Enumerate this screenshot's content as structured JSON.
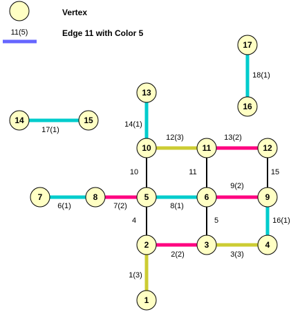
{
  "legend": {
    "vertex_label": "Vertex",
    "edge_sample_label": "11(5)",
    "edge_description": "Edge 11 with Color 5"
  },
  "colors": {
    "1": "#cccc33",
    "2": "#ff0080",
    "3": "#cccc33",
    "5": "#6666ff",
    "black": "#000000",
    "cyan": "#00cccc"
  },
  "vertices": [
    {
      "id": "1",
      "label": "1"
    },
    {
      "id": "2",
      "label": "2"
    },
    {
      "id": "3",
      "label": "3"
    },
    {
      "id": "4",
      "label": "4"
    },
    {
      "id": "5",
      "label": "5"
    },
    {
      "id": "6",
      "label": "6"
    },
    {
      "id": "7",
      "label": "7"
    },
    {
      "id": "8",
      "label": "8"
    },
    {
      "id": "9",
      "label": "9"
    },
    {
      "id": "10",
      "label": "10"
    },
    {
      "id": "11",
      "label": "11"
    },
    {
      "id": "12",
      "label": "12"
    },
    {
      "id": "13",
      "label": "13"
    },
    {
      "id": "14",
      "label": "14"
    },
    {
      "id": "15",
      "label": "15"
    },
    {
      "id": "16",
      "label": "16"
    },
    {
      "id": "17",
      "label": "17"
    }
  ],
  "edges": [
    {
      "from": "2",
      "to": "1",
      "label": "1(3)",
      "color": "#cccc33"
    },
    {
      "from": "2",
      "to": "3",
      "label": "2(2)",
      "color": "#ff0080"
    },
    {
      "from": "3",
      "to": "4",
      "label": "3(3)",
      "color": "#cccc33"
    },
    {
      "from": "5",
      "to": "2",
      "label": "4",
      "color": "#000000"
    },
    {
      "from": "6",
      "to": "3",
      "label": "5",
      "color": "#000000"
    },
    {
      "from": "7",
      "to": "8",
      "label": "6(1)",
      "color": "#00cccc"
    },
    {
      "from": "8",
      "to": "5",
      "label": "7(2)",
      "color": "#ff0080"
    },
    {
      "from": "5",
      "to": "6",
      "label": "8(1)",
      "color": "#00cccc"
    },
    {
      "from": "6",
      "to": "9",
      "label": "9(2)",
      "color": "#ff0080"
    },
    {
      "from": "10",
      "to": "5",
      "label": "10",
      "color": "#000000"
    },
    {
      "from": "11",
      "to": "6",
      "label": "11",
      "color": "#000000"
    },
    {
      "from": "10",
      "to": "11",
      "label": "12(3)",
      "color": "#cccc33"
    },
    {
      "from": "11",
      "to": "12",
      "label": "13(2)",
      "color": "#ff0080"
    },
    {
      "from": "13",
      "to": "10",
      "label": "14(1)",
      "color": "#00cccc"
    },
    {
      "from": "12",
      "to": "9",
      "label": "15",
      "color": "#000000"
    },
    {
      "from": "9",
      "to": "4",
      "label": "16(1)",
      "color": "#00cccc"
    },
    {
      "from": "14",
      "to": "15",
      "label": "17(1)",
      "color": "#00cccc"
    },
    {
      "from": "17",
      "to": "16",
      "label": "18(1)",
      "color": "#00cccc"
    }
  ]
}
